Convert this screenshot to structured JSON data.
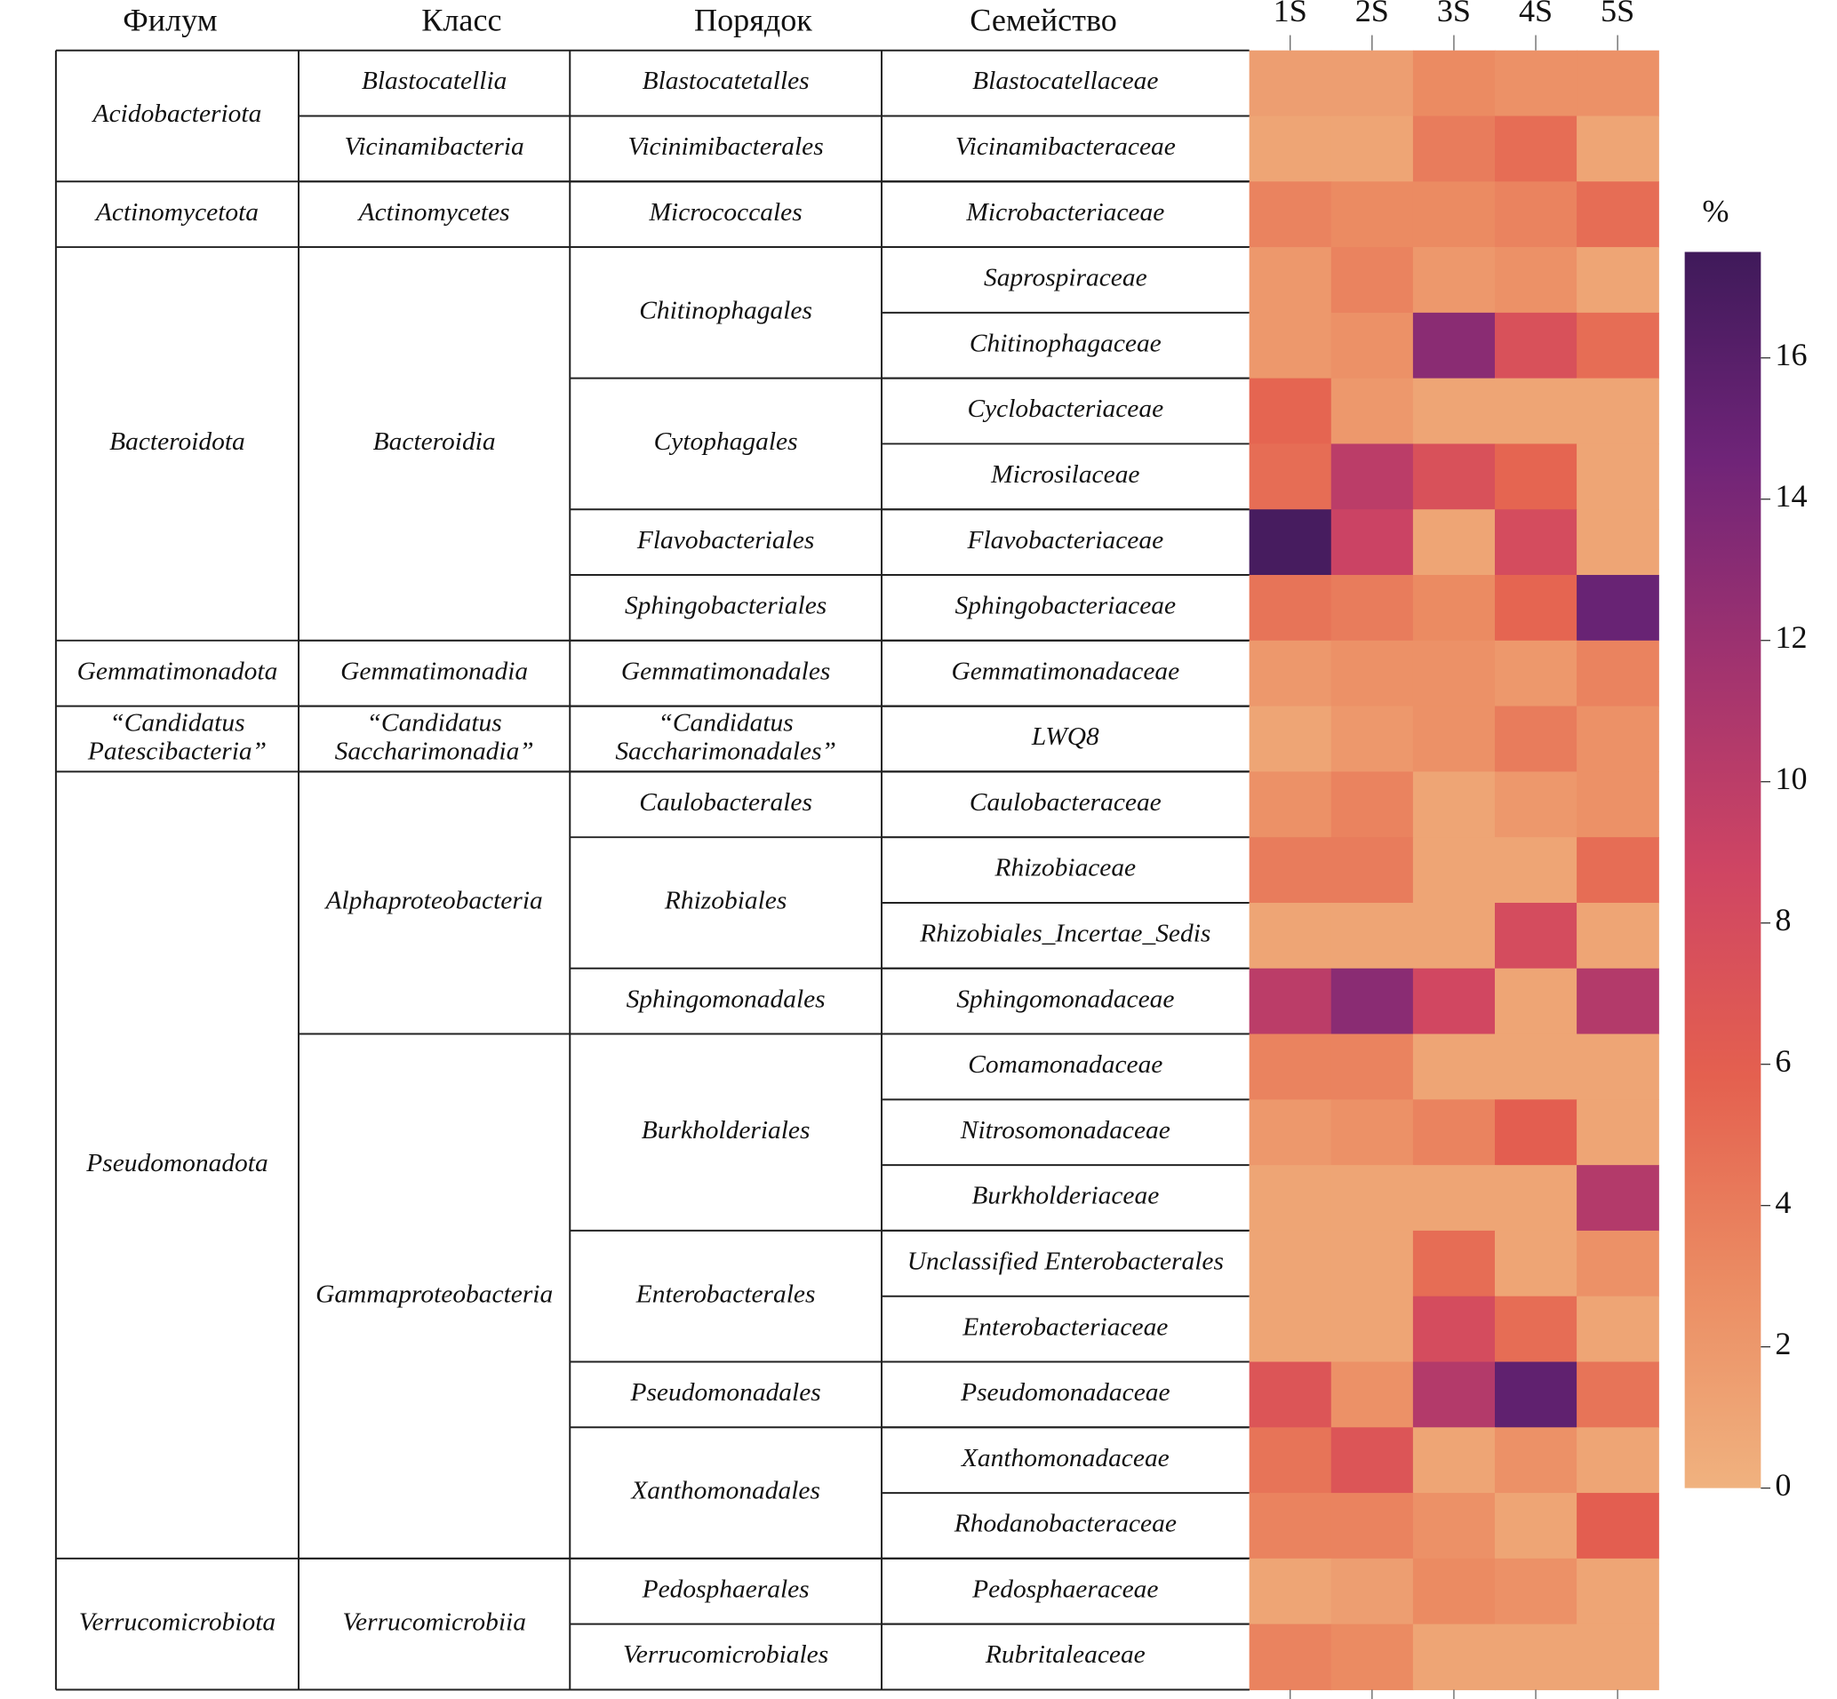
{
  "chart_data": {
    "type": "heatmap",
    "headers": [
      "Филум",
      "Класс",
      "Порядок",
      "Семейство"
    ],
    "columns": [
      "1S",
      "2S",
      "3S",
      "4S",
      "5S"
    ],
    "colorbar_label": "%",
    "zlim": [
      0,
      17.5
    ],
    "zticks": [
      0,
      2,
      4,
      6,
      8,
      10,
      12,
      14,
      16
    ],
    "colors": [
      "#f0b27f",
      "#eb8c63",
      "#e4604f",
      "#cf4563",
      "#a1336f",
      "#6f2478",
      "#3f1a5a"
    ],
    "phyla": [
      {
        "name": "Acidobacteriota",
        "classes": [
          {
            "name": "Blastocatellia",
            "orders": [
              {
                "name": "Blastocatetalles",
                "families": [
                  {
                    "name": "Blastocatellaceae",
                    "values": [
                      1.5,
                      1.5,
                      3,
                      2.5,
                      2.5
                    ]
                  }
                ]
              }
            ]
          },
          {
            "name": "Vicinamibacteria",
            "orders": [
              {
                "name": "Vicinimibacterales",
                "families": [
                  {
                    "name": "Vicinamibacteraceae",
                    "values": [
                      1,
                      1,
                      4,
                      5,
                      1
                    ]
                  }
                ]
              }
            ]
          }
        ]
      },
      {
        "name": "Actinomycetota",
        "classes": [
          {
            "name": "Actinomycetes",
            "orders": [
              {
                "name": "Micrococcales",
                "families": [
                  {
                    "name": "Microbacteriaceae",
                    "values": [
                      3.5,
                      3,
                      3,
                      3.5,
                      5
                    ]
                  }
                ]
              }
            ]
          }
        ]
      },
      {
        "name": "Bacteroidota",
        "classes": [
          {
            "name": "Bacteroidia",
            "orders": [
              {
                "name": "Chitinophagales",
                "families": [
                  {
                    "name": "Saprospiraceae",
                    "values": [
                      2,
                      3.5,
                      2,
                      2.5,
                      1
                    ]
                  },
                  {
                    "name": "Chitinophagaceae",
                    "values": [
                      2,
                      2.5,
                      13,
                      7.5,
                      5
                    ]
                  }
                ]
              },
              {
                "name": "Cytophagales",
                "families": [
                  {
                    "name": "Cyclobacteriaceae",
                    "values": [
                      5.5,
                      2,
                      1,
                      1,
                      1
                    ]
                  },
                  {
                    "name": "Microsilaceae",
                    "values": [
                      5,
                      10,
                      7.5,
                      5.5,
                      1
                    ]
                  }
                ]
              },
              {
                "name": "Flavobacteriales",
                "families": [
                  {
                    "name": "Flavobacteriaceae",
                    "values": [
                      17,
                      9,
                      1,
                      8,
                      1
                    ]
                  }
                ]
              },
              {
                "name": "Sphingobacteriales",
                "families": [
                  {
                    "name": "Sphingobacteriaceae",
                    "values": [
                      4.5,
                      4,
                      3,
                      5.5,
                      15
                    ]
                  }
                ]
              }
            ]
          }
        ]
      },
      {
        "name": "Gemmatimonadota",
        "classes": [
          {
            "name": "Gemmatimonadia",
            "orders": [
              {
                "name": "Gemmatimonadales",
                "families": [
                  {
                    "name": "Gemmatimonadaceae",
                    "values": [
                      2,
                      2.5,
                      2.5,
                      2,
                      3.5
                    ]
                  }
                ]
              }
            ]
          }
        ]
      },
      {
        "name": "“Candidatus\nPatescibacteria”",
        "classes": [
          {
            "name": "“Candidatus\nSaccharimonadia”",
            "orders": [
              {
                "name": "“Candidatus\nSaccharimonadales”",
                "families": [
                  {
                    "name": "LWQ8",
                    "values": [
                      1,
                      2,
                      2.5,
                      4,
                      2.5
                    ]
                  }
                ]
              }
            ]
          }
        ]
      },
      {
        "name": "Pseudomonadota",
        "classes": [
          {
            "name": "Alphaproteobacteria",
            "orders": [
              {
                "name": "Caulobacterales",
                "families": [
                  {
                    "name": "Caulobacteraceae",
                    "values": [
                      2.5,
                      3.5,
                      1,
                      2,
                      2.5
                    ]
                  }
                ]
              },
              {
                "name": "Rhizobiales",
                "families": [
                  {
                    "name": "Rhizobiaceae",
                    "values": [
                      4,
                      4,
                      1,
                      1,
                      5
                    ]
                  },
                  {
                    "name": "Rhizobiales_Incertae_Sedis",
                    "values": [
                      1,
                      1,
                      1,
                      8,
                      1
                    ]
                  }
                ]
              },
              {
                "name": "Sphingomonadales",
                "families": [
                  {
                    "name": "Sphingomonadaceae",
                    "values": [
                      10,
                      13,
                      8.5,
                      1,
                      10.5
                    ]
                  }
                ]
              }
            ]
          },
          {
            "name": "Gammaproteobacteria",
            "orders": [
              {
                "name": "Burkholderiales",
                "families": [
                  {
                    "name": "Comamonadaceae",
                    "values": [
                      3.5,
                      3.5,
                      1,
                      1,
                      1
                    ]
                  },
                  {
                    "name": "Nitrosomonadaceae",
                    "values": [
                      2,
                      2.5,
                      3.5,
                      6,
                      1
                    ]
                  },
                  {
                    "name": "Burkholderiaceae",
                    "values": [
                      1,
                      1,
                      1,
                      1,
                      10.5
                    ]
                  }
                ]
              },
              {
                "name": "Enterobacterales",
                "families": [
                  {
                    "name": "Unclassified Enterobacterales",
                    "values": [
                      1,
                      1,
                      5,
                      1,
                      2.5
                    ]
                  },
                  {
                    "name": "Enterobacteriaceae",
                    "values": [
                      1,
                      1,
                      8,
                      5,
                      1
                    ]
                  }
                ]
              },
              {
                "name": "Pseudomonadales",
                "families": [
                  {
                    "name": "Pseudomonadaceae",
                    "values": [
                      7,
                      2.5,
                      10.5,
                      15.5,
                      4.5
                    ]
                  }
                ]
              },
              {
                "name": "Xanthomonadales",
                "families": [
                  {
                    "name": "Xanthomonadaceae",
                    "values": [
                      4.5,
                      7,
                      1,
                      2.5,
                      1
                    ]
                  },
                  {
                    "name": "Rhodanobacteraceae",
                    "values": [
                      3.5,
                      3.5,
                      2.5,
                      1,
                      6
                    ]
                  }
                ]
              }
            ]
          }
        ]
      },
      {
        "name": "Verrucomicrobiota",
        "classes": [
          {
            "name": "Verrucomicrobiia",
            "orders": [
              {
                "name": "Pedosphaerales",
                "families": [
                  {
                    "name": "Pedosphaeraceae",
                    "values": [
                      1,
                      1.5,
                      3,
                      2.5,
                      1
                    ]
                  }
                ]
              },
              {
                "name": "Verrucomicrobiales",
                "families": [
                  {
                    "name": "Rubritaleaceae",
                    "values": [
                      3.5,
                      3,
                      1,
                      1,
                      1
                    ]
                  }
                ]
              }
            ]
          }
        ]
      }
    ]
  }
}
